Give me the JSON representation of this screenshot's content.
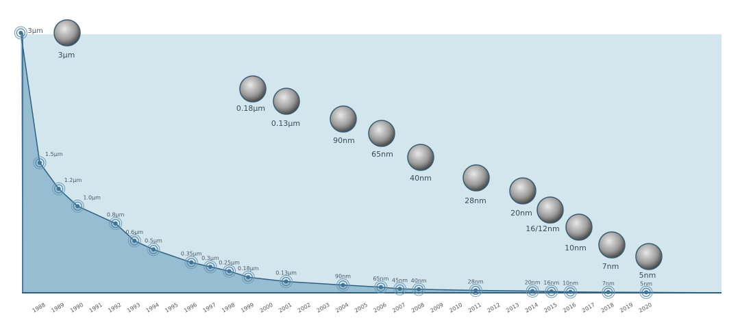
{
  "chart_data": {
    "type": "area",
    "title": "",
    "xlabel": "",
    "ylabel": "",
    "ylim_um": [
      0,
      3
    ],
    "grid": false,
    "years": [
      "1988",
      "1989",
      "1990",
      "1991",
      "1992",
      "1993",
      "1994",
      "1995",
      "1996",
      "1997",
      "1998",
      "1999",
      "2000",
      "2001",
      "2002",
      "2003",
      "2004",
      "2005",
      "2006",
      "2007",
      "2008",
      "2009",
      "2010",
      "2011",
      "2012",
      "2013",
      "2014",
      "2015",
      "2016",
      "2017",
      "2018",
      "2019",
      "2020"
    ],
    "points": [
      {
        "year": 1987,
        "value_um": 3.0,
        "label": "3μm"
      },
      {
        "year": 1988,
        "value_um": 1.5,
        "label": "1.5μm"
      },
      {
        "year": 1989,
        "value_um": 1.2,
        "label": "1.2μm"
      },
      {
        "year": 1990,
        "value_um": 1.0,
        "label": "1.0μm"
      },
      {
        "year": 1992,
        "value_um": 0.8,
        "label": "0.8μm"
      },
      {
        "year": 1993,
        "value_um": 0.6,
        "label": "0.6μm"
      },
      {
        "year": 1994,
        "value_um": 0.5,
        "label": "0.5μm"
      },
      {
        "year": 1996,
        "value_um": 0.35,
        "label": "0.35μm"
      },
      {
        "year": 1997,
        "value_um": 0.3,
        "label": "0.3μm"
      },
      {
        "year": 1998,
        "value_um": 0.25,
        "label": "0.25μm"
      },
      {
        "year": 1999,
        "value_um": 0.18,
        "label": "0.18μm"
      },
      {
        "year": 2001,
        "value_um": 0.13,
        "label": "0.13μm"
      },
      {
        "year": 2004,
        "value_um": 0.09,
        "label": "90nm"
      },
      {
        "year": 2006,
        "value_um": 0.065,
        "label": "65nm"
      },
      {
        "year": 2007,
        "value_um": 0.045,
        "label": "45nm"
      },
      {
        "year": 2008,
        "value_um": 0.04,
        "label": "40nm"
      },
      {
        "year": 2011,
        "value_um": 0.028,
        "label": "28nm"
      },
      {
        "year": 2014,
        "value_um": 0.02,
        "label": "20nm"
      },
      {
        "year": 2015,
        "value_um": 0.016,
        "label": "16nm"
      },
      {
        "year": 2016,
        "value_um": 0.01,
        "label": "10nm"
      },
      {
        "year": 2018,
        "value_um": 0.007,
        "label": "7nm"
      },
      {
        "year": 2020,
        "value_um": 0.005,
        "label": "5nm"
      }
    ],
    "thumbnails": [
      "3μm",
      "0.18μm",
      "0.13μm",
      "90nm",
      "65nm",
      "40nm",
      "28nm",
      "20nm",
      "16/12nm",
      "10nm",
      "7nm",
      "5nm"
    ],
    "colors": {
      "background": "#d3e6ee",
      "fill": "#94bbd0",
      "line": "#2e5f80",
      "marker": "#3f7295"
    }
  }
}
